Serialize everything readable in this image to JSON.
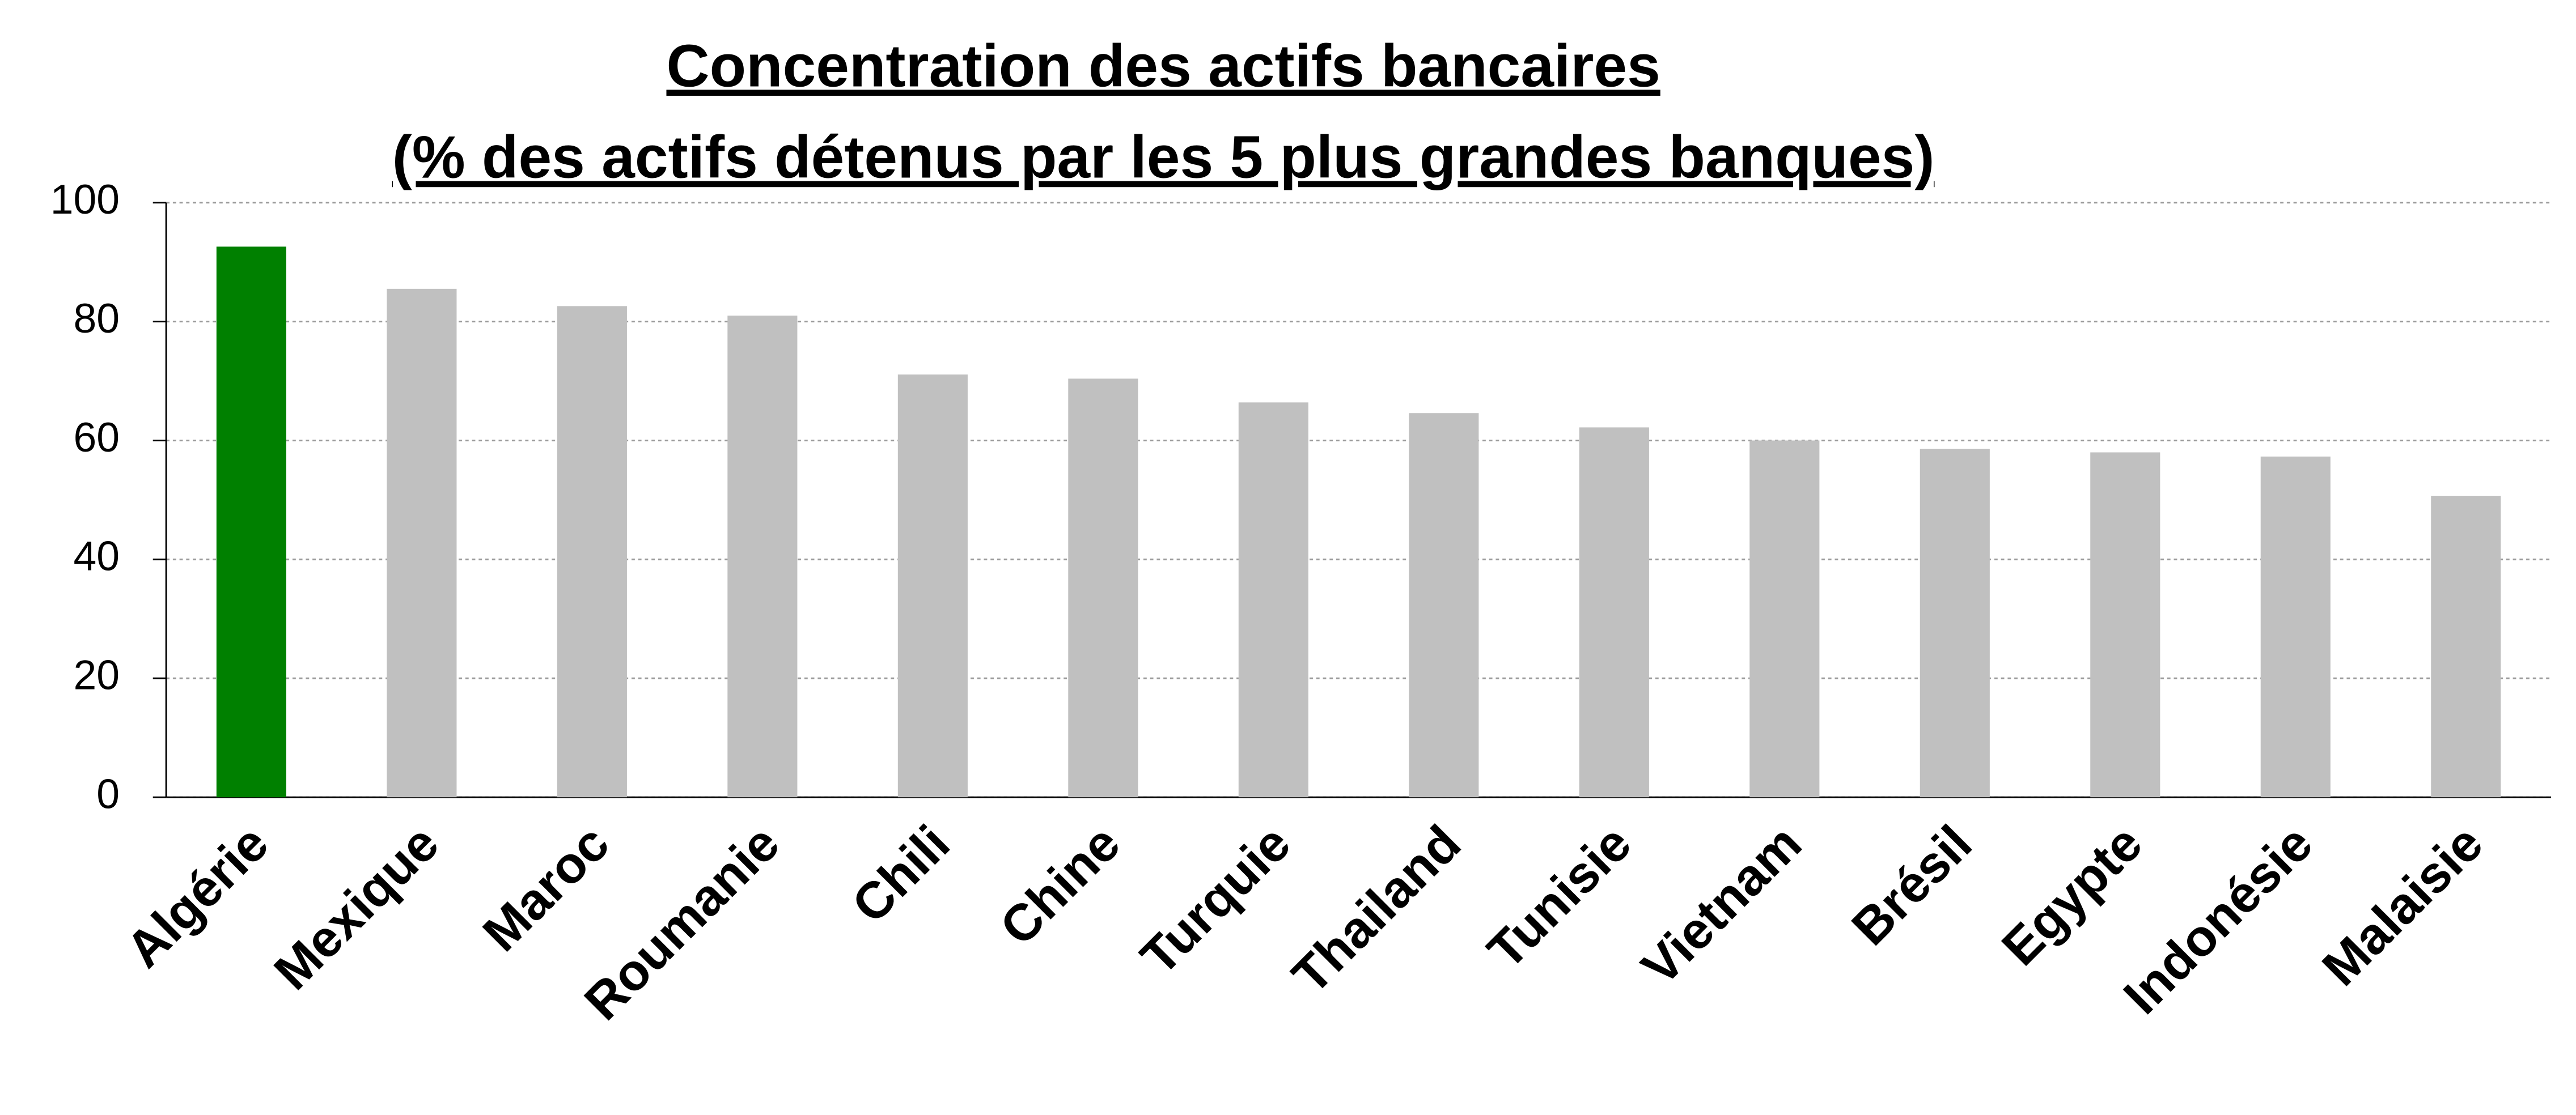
{
  "chart_data": {
    "type": "bar",
    "title": [
      "Concentration des actifs bancaires",
      "(% des actifs détenus par les 5 plus grandes banques)"
    ],
    "categories": [
      "Algérie",
      "Mexique",
      "Maroc",
      "Roumanie",
      "Chili",
      "Chine",
      "Turquie",
      "Thailand",
      "Tunisie",
      "Vietnam",
      "Brésil",
      "Egypte",
      "Indonésie",
      "Malaisie"
    ],
    "values": [
      92.6,
      85.5,
      82.6,
      81,
      71.1,
      70.4,
      66.4,
      64.6,
      62.2,
      60,
      58.6,
      58,
      57.3,
      50.7
    ],
    "colors": [
      "#008000",
      "#c0c0c0",
      "#c0c0c0",
      "#c0c0c0",
      "#c0c0c0",
      "#c0c0c0",
      "#c0c0c0",
      "#c0c0c0",
      "#c0c0c0",
      "#c0c0c0",
      "#c0c0c0",
      "#c0c0c0",
      "#c0c0c0",
      "#c0c0c0"
    ],
    "ylim": [
      0,
      100
    ],
    "yticks": [
      0,
      20,
      40,
      60,
      80,
      100
    ],
    "grid": true
  }
}
